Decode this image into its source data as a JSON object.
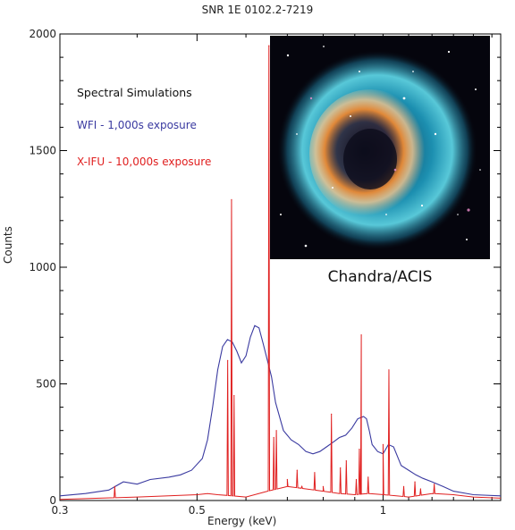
{
  "title": "SNR 1E 0102.2-7219",
  "legend": {
    "heading": "Spectral Simulations",
    "wfi": "WFI - 1,000s exposure",
    "xifu": "X-IFU - 10,000s exposure"
  },
  "inset_caption": "Chandra/ACIS",
  "colors": {
    "wfi": "#3a3aa0",
    "xifu": "#e02020",
    "axis": "#000000"
  },
  "chart_data": {
    "type": "line",
    "xlabel": "Energy (keV)",
    "ylabel": "Counts",
    "xscale": "log",
    "xlim": [
      0.3,
      1.55
    ],
    "ylim": [
      0,
      2000
    ],
    "xticks": [
      0.3,
      0.5,
      1
    ],
    "xtick_labels": [
      "0.3",
      "0.5",
      "1"
    ],
    "yticks": [
      0,
      500,
      1000,
      1500,
      2000
    ],
    "ytick_labels": [
      "0",
      "500",
      "1000",
      "1500",
      "2000"
    ],
    "series": [
      {
        "name": "WFI - 1,000s exposure",
        "x": [
          0.3,
          0.33,
          0.36,
          0.38,
          0.4,
          0.42,
          0.45,
          0.47,
          0.49,
          0.51,
          0.52,
          0.53,
          0.54,
          0.55,
          0.56,
          0.57,
          0.58,
          0.59,
          0.6,
          0.61,
          0.62,
          0.63,
          0.64,
          0.65,
          0.66,
          0.67,
          0.69,
          0.71,
          0.73,
          0.75,
          0.77,
          0.79,
          0.81,
          0.83,
          0.85,
          0.87,
          0.89,
          0.91,
          0.93,
          0.94,
          0.95,
          0.96,
          0.98,
          1.0,
          1.02,
          1.04,
          1.07,
          1.1,
          1.13,
          1.16,
          1.2,
          1.25,
          1.3,
          1.4,
          1.55
        ],
        "y": [
          20,
          30,
          45,
          80,
          70,
          90,
          100,
          110,
          130,
          180,
          260,
          400,
          560,
          660,
          690,
          680,
          640,
          590,
          620,
          700,
          750,
          740,
          670,
          600,
          530,
          420,
          300,
          260,
          240,
          210,
          200,
          210,
          230,
          250,
          270,
          280,
          310,
          350,
          360,
          350,
          300,
          240,
          210,
          200,
          240,
          230,
          150,
          130,
          110,
          95,
          80,
          60,
          40,
          25,
          20
        ]
      },
      {
        "name": "X-IFU - 10,000s exposure",
        "baseline": {
          "x": [
            0.3,
            0.4,
            0.45,
            0.5,
            0.52,
            0.54,
            0.57,
            0.6,
            0.65,
            0.7,
            0.75,
            0.8,
            0.85,
            0.9,
            0.95,
            1.0,
            1.05,
            1.1,
            1.2,
            1.3,
            1.4,
            1.55
          ],
          "y": [
            5,
            15,
            20,
            25,
            30,
            25,
            20,
            15,
            40,
            60,
            50,
            40,
            30,
            25,
            30,
            25,
            20,
            15,
            30,
            25,
            15,
            10
          ]
        },
        "lines": [
          {
            "x": 0.368,
            "y": 60
          },
          {
            "x": 0.5605,
            "y": 600
          },
          {
            "x": 0.5686,
            "y": 1290
          },
          {
            "x": 0.574,
            "y": 450
          },
          {
            "x": 0.6536,
            "y": 1950
          },
          {
            "x": 0.6655,
            "y": 270
          },
          {
            "x": 0.672,
            "y": 300
          },
          {
            "x": 0.7,
            "y": 90
          },
          {
            "x": 0.726,
            "y": 130
          },
          {
            "x": 0.739,
            "y": 60
          },
          {
            "x": 0.775,
            "y": 120
          },
          {
            "x": 0.8,
            "y": 60
          },
          {
            "x": 0.825,
            "y": 370
          },
          {
            "x": 0.853,
            "y": 140
          },
          {
            "x": 0.872,
            "y": 170
          },
          {
            "x": 0.905,
            "y": 90
          },
          {
            "x": 0.92,
            "y": 70
          },
          {
            "x": 0.9155,
            "y": 220
          },
          {
            "x": 0.9221,
            "y": 710
          },
          {
            "x": 0.946,
            "y": 100
          },
          {
            "x": 1.0,
            "y": 240
          },
          {
            "x": 1.022,
            "y": 560
          },
          {
            "x": 1.08,
            "y": 60
          },
          {
            "x": 1.126,
            "y": 80
          },
          {
            "x": 1.15,
            "y": 50
          },
          {
            "x": 1.21,
            "y": 70
          }
        ]
      }
    ]
  }
}
